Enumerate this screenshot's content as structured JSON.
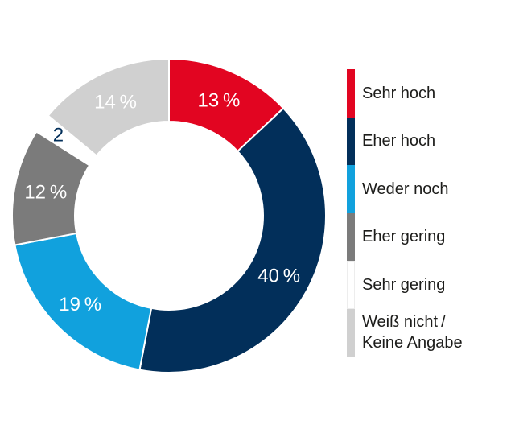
{
  "background_color": "#ffffff",
  "chart_data": {
    "type": "pie",
    "subtype": "donut",
    "title": "",
    "start_angle_deg": 0,
    "direction": "clockwise",
    "legend_position": "right",
    "units": "%",
    "total": 100,
    "slices": [
      {
        "label": "Sehr hoch",
        "value": 13,
        "display": "13 %",
        "color": "#e20521",
        "label_color": "#ffffff"
      },
      {
        "label": "Eher hoch",
        "value": 40,
        "display": "40 %",
        "color": "#022f5a",
        "label_color": "#ffffff"
      },
      {
        "label": "Weder noch",
        "value": 19,
        "display": "19 %",
        "color": "#11a1dd",
        "label_color": "#ffffff"
      },
      {
        "label": "Eher gering",
        "value": 12,
        "display": "12 %",
        "color": "#7b7b7b",
        "label_color": "#ffffff"
      },
      {
        "label": "Sehr gering",
        "value": 2,
        "display": "2",
        "color": "#ffffff",
        "label_color": "#022f5a",
        "label_radius": 170
      },
      {
        "label": "Weiß nicht / Keine Angabe",
        "value": 14,
        "display": "14 %",
        "color": "#d0d0d0",
        "label_color": "#ffffff"
      }
    ],
    "legend": [
      {
        "label": "Sehr hoch",
        "color": "#e20521"
      },
      {
        "label": "Eher hoch",
        "color": "#022f5a"
      },
      {
        "label": "Weder noch",
        "color": "#11a1dd"
      },
      {
        "label": "Eher gering",
        "color": "#7b7b7b"
      },
      {
        "label": "Sehr gering",
        "color": "#ffffff",
        "border": "#ededed"
      },
      {
        "label": "Weiß nicht /\nKeine Angabe",
        "color": "#d0d0d0"
      }
    ],
    "legend_text_color": "#1d1d1b"
  }
}
